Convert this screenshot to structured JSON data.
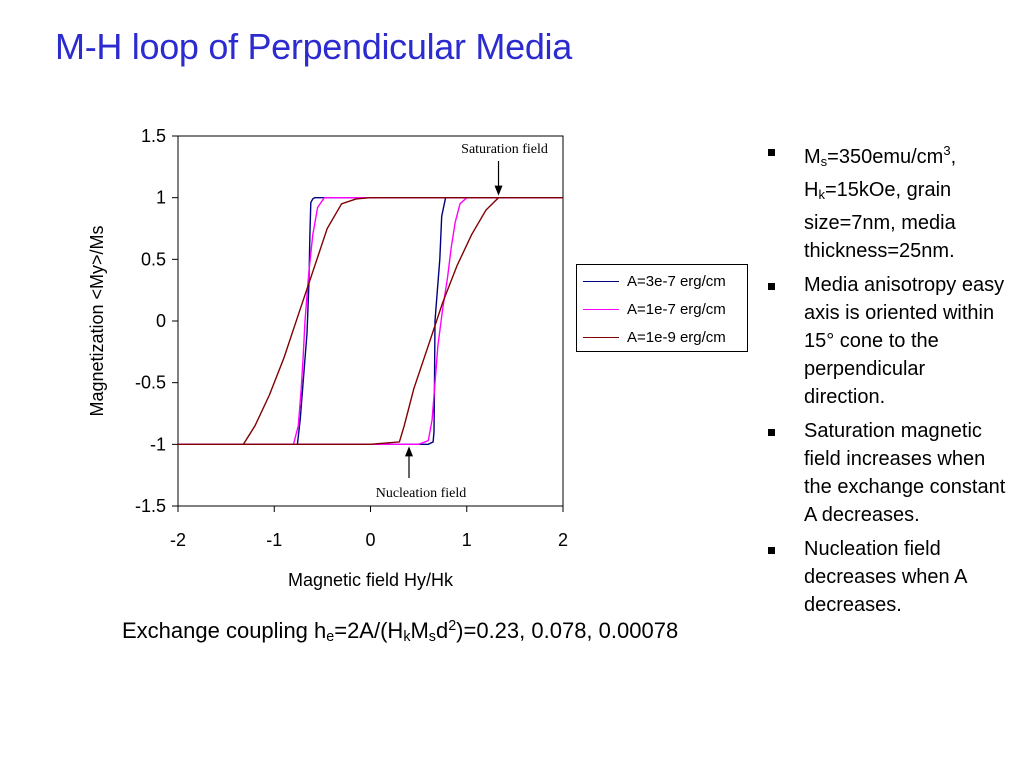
{
  "slide": {
    "title": "M-H loop of Perpendicular Media",
    "caption": {
      "parts": [
        "Exchange coupling h",
        "e",
        "=2A/(H",
        "k",
        "M",
        "s",
        "d",
        "2",
        ")=0.23, 0.078, 0.00078"
      ]
    },
    "bullets": [
      {
        "parts": [
          "M",
          "s",
          "=350emu/cm",
          "3",
          ", H",
          "k",
          "=15kOe, grain size=7nm, media thickness=25nm."
        ]
      },
      {
        "text": "Media anisotropy easy axis is oriented within 15° cone to the perpendicular direction."
      },
      {
        "text": "Saturation magnetic field increases when the exchange constant A decreases."
      },
      {
        "text": "Nucleation field decreases when A decreases."
      }
    ]
  },
  "chart_data": {
    "type": "line",
    "title": "",
    "xlabel": "Magnetic field Hy/Hk",
    "ylabel": "Magnetization <My>/Ms",
    "xlim": [
      -2,
      2
    ],
    "ylim": [
      -1.5,
      1.5
    ],
    "xticks": [
      -2,
      -1,
      0,
      1,
      2
    ],
    "yticks": [
      1.5,
      1,
      0.5,
      0,
      -0.5,
      -1,
      -1.5
    ],
    "ytick_labels": [
      "1.5",
      "1",
      "0.5",
      "0",
      "-0.5",
      "-1",
      "-1.5"
    ],
    "xtick_labels": [
      "-2",
      "-1",
      "0",
      "1",
      "2"
    ],
    "grid": false,
    "legend_placement": "right-outside",
    "annotations": [
      {
        "text": "Saturation field",
        "arrow_to": [
          1.33,
          1.0
        ]
      },
      {
        "text": "Nucleation field",
        "arrow_to": [
          0.4,
          -1.0
        ]
      }
    ],
    "series": [
      {
        "name": "A=3e-7 erg/cm",
        "color": "#000080",
        "x_desc": [
          2.0,
          0.78,
          0.74,
          0.72,
          0.69,
          0.67,
          0.665,
          0.66,
          0.65,
          0.6,
          0.4,
          0.0,
          -0.5,
          -0.76,
          -2.0
        ],
        "y_desc": [
          1.0,
          1.0,
          0.85,
          0.5,
          0.2,
          0.0,
          -0.5,
          -0.9,
          -0.98,
          -1.0,
          -1.0,
          -1.0,
          -1.0,
          -1.0,
          -1.0
        ],
        "x_asc": [
          -2.0,
          -0.76,
          -0.73,
          -0.7,
          -0.66,
          -0.64,
          -0.63,
          -0.62,
          -0.6,
          -0.58,
          2.0
        ],
        "y_asc": [
          -1.0,
          -1.0,
          -0.8,
          -0.5,
          -0.1,
          0.3,
          0.7,
          0.96,
          0.99,
          1.0,
          1.0
        ]
      },
      {
        "name": "A=1e-7 erg/cm",
        "color": "#ff00ff",
        "x_desc": [
          2.0,
          1.0,
          0.93,
          0.88,
          0.84,
          0.8,
          0.75,
          0.7,
          0.67,
          0.64,
          0.6,
          0.5,
          0.0,
          -0.8,
          -2.0
        ],
        "y_desc": [
          1.0,
          1.0,
          0.95,
          0.8,
          0.6,
          0.35,
          0.1,
          -0.2,
          -0.5,
          -0.8,
          -0.97,
          -1.0,
          -1.0,
          -1.0,
          -1.0
        ],
        "x_asc": [
          -2.0,
          -0.8,
          -0.75,
          -0.72,
          -0.7,
          -0.68,
          -0.64,
          -0.6,
          -0.55,
          -0.48,
          2.0
        ],
        "y_asc": [
          -1.0,
          -1.0,
          -0.85,
          -0.55,
          -0.3,
          0.0,
          0.4,
          0.7,
          0.92,
          1.0,
          1.0
        ]
      },
      {
        "name": "A=1e-9 erg/cm",
        "color": "#800000",
        "x_desc": [
          2.0,
          1.33,
          1.2,
          1.05,
          0.9,
          0.75,
          0.6,
          0.45,
          0.35,
          0.3,
          0.0,
          -1.32,
          -2.0
        ],
        "y_desc": [
          1.0,
          1.0,
          0.9,
          0.7,
          0.45,
          0.15,
          -0.2,
          -0.55,
          -0.85,
          -0.98,
          -1.0,
          -1.0,
          -1.0
        ],
        "x_asc": [
          -2.0,
          -1.32,
          -1.2,
          -1.05,
          -0.9,
          -0.75,
          -0.6,
          -0.45,
          -0.3,
          -0.15,
          0.0,
          2.0
        ],
        "y_asc": [
          -1.0,
          -1.0,
          -0.85,
          -0.6,
          -0.3,
          0.05,
          0.4,
          0.75,
          0.95,
          0.99,
          1.0,
          1.0
        ]
      }
    ]
  }
}
